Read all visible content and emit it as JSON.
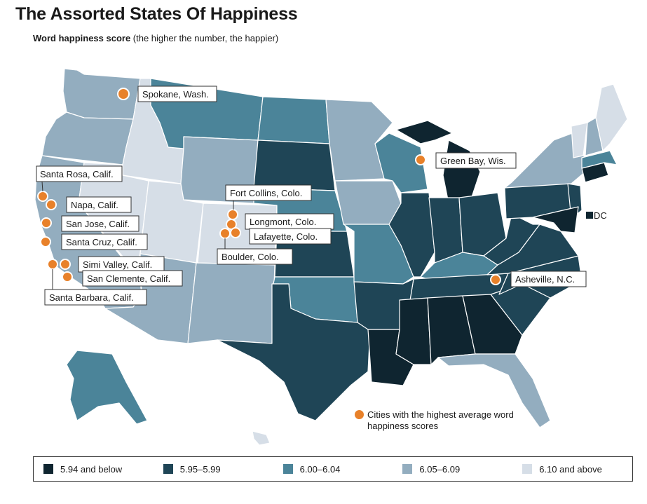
{
  "title": "The Assorted States Of Happiness",
  "subtitle_bold": "Word happiness score",
  "subtitle_rest": " (the higher the number, the happier)",
  "colors": {
    "c1": "#0f2530",
    "c2": "#1f4556",
    "c3": "#4b8499",
    "c4": "#93adbf",
    "c5": "#d6dee7",
    "city": "#e8812a"
  },
  "legend": [
    {
      "label": "5.94 and below",
      "color": "#0f2530"
    },
    {
      "label": "5.95–5.99",
      "color": "#1f4556"
    },
    {
      "label": "6.00–6.04",
      "color": "#4b8499"
    },
    {
      "label": "6.05–6.09",
      "color": "#93adbf"
    },
    {
      "label": "6.10 and above",
      "color": "#d6dee7"
    }
  ],
  "dc_label": "DC",
  "city_legend": "Cities with the highest average word happiness scores",
  "cities": [
    "Spokane, Wash.",
    "Green Bay, Wis.",
    "Santa Rosa, Calif.",
    "Napa, Calif.",
    "San Jose, Calif.",
    "Santa Cruz, Calif.",
    "Simi Valley, Calif.",
    "San Clemente, Calif.",
    "Santa Barbara, Calif.",
    "Fort Collins, Colo.",
    "Longmont, Colo.",
    "Lafayette, Colo.",
    "Boulder, Colo.",
    "Asheville, N.C."
  ]
}
